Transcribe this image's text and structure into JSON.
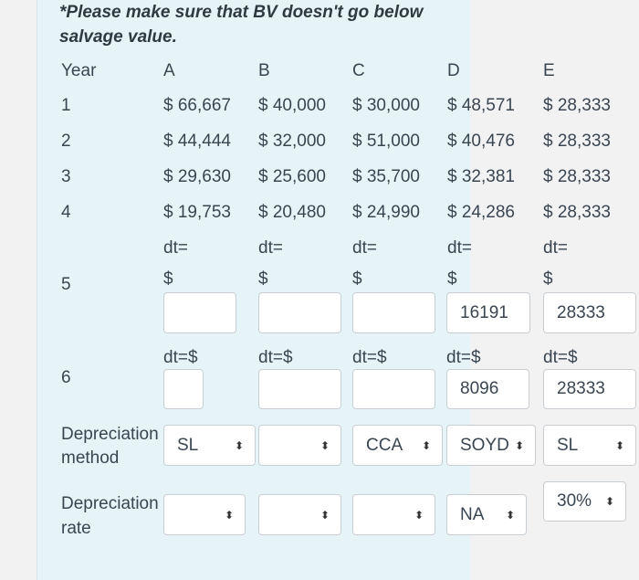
{
  "note": {
    "line1": "*Please make sure that BV doesn't go below",
    "line2": "salvage value."
  },
  "header": {
    "year": "Year",
    "cols": [
      "A",
      "B",
      "C",
      "D",
      "E"
    ]
  },
  "rows": [
    {
      "year": "1",
      "values": [
        "$ 66,667",
        "$ 40,000",
        "$ 30,000",
        "$ 48,571",
        "$ 28,333"
      ]
    },
    {
      "year": "2",
      "values": [
        "$ 44,444",
        "$ 32,000",
        "$ 51,000",
        "$ 40,476",
        "$ 28,333"
      ]
    },
    {
      "year": "3",
      "values": [
        "$ 29,630",
        "$ 25,600",
        "$ 35,700",
        "$ 32,381",
        "$ 28,333"
      ]
    },
    {
      "year": "4",
      "values": [
        "$ 19,753",
        "$ 20,480",
        "$ 24,990",
        "$ 24,286",
        "$ 28,333"
      ]
    }
  ],
  "row5": {
    "year": "5",
    "dt_label": "dt=",
    "dollar": "$",
    "inputs": [
      "",
      "",
      "",
      "16191",
      "28333"
    ]
  },
  "row6": {
    "year": "6",
    "dt_label": "dt=$",
    "inputs": [
      "",
      "",
      "",
      "8096",
      "28333"
    ]
  },
  "method": {
    "label_line1": "Depreciation",
    "label_line2": "method",
    "selects": [
      "SL",
      "",
      "CCA",
      "SOYD",
      "SL"
    ]
  },
  "rate": {
    "label_line1": "Depreciation",
    "label_line2": "rate",
    "selects": [
      "",
      "",
      "",
      "NA",
      "30%"
    ]
  },
  "icons": {
    "select_arrow": "⬍"
  }
}
